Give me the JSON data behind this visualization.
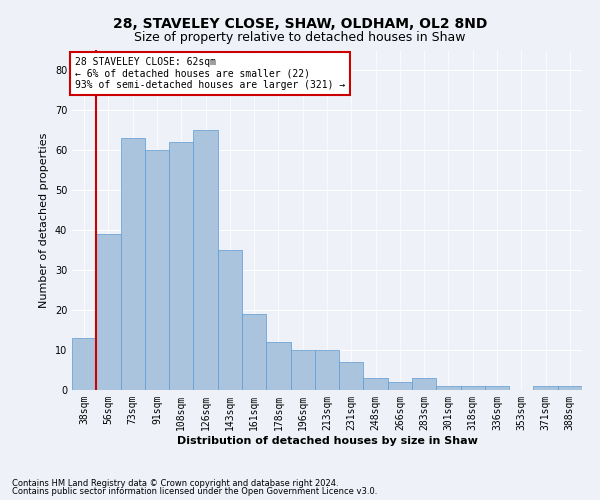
{
  "title": "28, STAVELEY CLOSE, SHAW, OLDHAM, OL2 8ND",
  "subtitle": "Size of property relative to detached houses in Shaw",
  "xlabel": "Distribution of detached houses by size in Shaw",
  "ylabel": "Number of detached properties",
  "footnote1": "Contains HM Land Registry data © Crown copyright and database right 2024.",
  "footnote2": "Contains public sector information licensed under the Open Government Licence v3.0.",
  "annotation_line1": "28 STAVELEY CLOSE: 62sqm",
  "annotation_line2": "← 6% of detached houses are smaller (22)",
  "annotation_line3": "93% of semi-detached houses are larger (321) →",
  "bar_color": "#aac4de",
  "bar_edge_color": "#5b9bd5",
  "bar_width": 1.0,
  "red_line_x": 0.5,
  "categories": [
    "38sqm",
    "56sqm",
    "73sqm",
    "91sqm",
    "108sqm",
    "126sqm",
    "143sqm",
    "161sqm",
    "178sqm",
    "196sqm",
    "213sqm",
    "231sqm",
    "248sqm",
    "266sqm",
    "283sqm",
    "301sqm",
    "318sqm",
    "336sqm",
    "353sqm",
    "371sqm",
    "388sqm"
  ],
  "values": [
    13,
    39,
    63,
    60,
    62,
    65,
    35,
    19,
    12,
    10,
    10,
    7,
    3,
    2,
    3,
    1,
    1,
    1,
    0,
    1,
    1
  ],
  "ylim": [
    0,
    85
  ],
  "yticks": [
    0,
    10,
    20,
    30,
    40,
    50,
    60,
    70,
    80
  ],
  "background_color": "#eef2f8",
  "grid_color": "#ffffff",
  "title_fontsize": 10,
  "subtitle_fontsize": 9,
  "axis_label_fontsize": 8,
  "tick_fontsize": 7,
  "annotation_fontsize": 7,
  "annotation_box_color": "#ffffff",
  "annotation_box_edge": "#cc0000",
  "red_line_color": "#cc0000"
}
